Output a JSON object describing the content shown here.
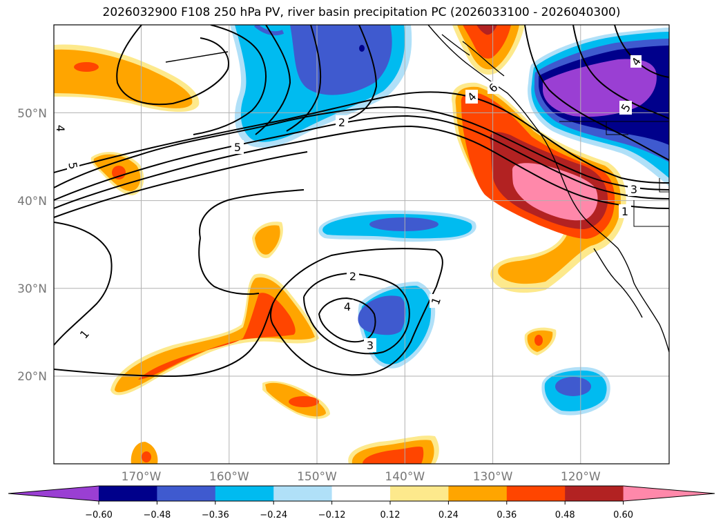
{
  "figure": {
    "title": "2026032900 F108 250 hPa PV, river basin precipitation PC (2026033100 - 2026040300)"
  },
  "axes": {
    "lat_labels": [
      "20°N",
      "30°N",
      "40°N",
      "50°N"
    ],
    "lat_values": [
      20,
      30,
      40,
      50
    ],
    "lon_labels": [
      "170°W",
      "160°W",
      "150°W",
      "140°W",
      "130°W",
      "120°W"
    ],
    "lon_values": [
      -170,
      -160,
      -150,
      -140,
      -130,
      -120
    ],
    "extent": {
      "lon_min": -180,
      "lon_max": -110,
      "lat_min": 10,
      "lat_max": 60
    }
  },
  "colorbar": {
    "tick_labels": [
      "−0.60",
      "−0.48",
      "−0.36",
      "−0.24",
      "−0.12",
      "0.12",
      "0.24",
      "0.36",
      "0.48",
      "0.60"
    ],
    "bounds": [
      -0.6,
      -0.48,
      -0.36,
      -0.24,
      -0.12,
      0.12,
      0.24,
      0.36,
      0.48,
      0.6
    ],
    "colors": [
      "#9a3fd3",
      "#00008b",
      "#3f5acf",
      "#00bbf0",
      "#b0e0f8",
      "#ffffff",
      "#fde98c",
      "#ffa500",
      "#ff4500",
      "#b22222",
      "#ff88aa"
    ],
    "extend": "both"
  },
  "chart_data": {
    "type": "map-contour",
    "title": "2026032900 F108 250 hPa PV, river basin precipitation PC (2026033100 - 2026040300)",
    "projection": "PlateCarree",
    "contour_field": "250 hPa PV",
    "contour_levels_labeled": [
      "1",
      "2",
      "3",
      "4",
      "5"
    ],
    "contour_labels": [
      {
        "text": "5",
        "lon": -157,
        "lat": 47
      },
      {
        "text": "2",
        "lon": -147,
        "lat": 49
      },
      {
        "text": "5",
        "lon": -178,
        "lat": 44
      },
      {
        "text": "4",
        "lon": -178,
        "lat": 48
      },
      {
        "text": "1",
        "lon": -173,
        "lat": 25
      },
      {
        "text": "2",
        "lon": -149,
        "lat": 31.5
      },
      {
        "text": "4",
        "lon": -146,
        "lat": 28
      },
      {
        "text": "3",
        "lon": -144,
        "lat": 24.5
      },
      {
        "text": "1",
        "lon": -136,
        "lat": 29
      },
      {
        "text": "3",
        "lon": -115.5,
        "lat": 41.5
      },
      {
        "text": "1",
        "lon": -115,
        "lat": 39
      },
      {
        "text": "4",
        "lon": -130,
        "lat": 52
      },
      {
        "text": "5",
        "lon": -115,
        "lat": 52.5
      },
      {
        "text": "4",
        "lon": -112,
        "lat": 57.5
      },
      {
        "text": "6",
        "lon": -130.5,
        "lat": 53.5
      }
    ],
    "filled_field": "river basin precipitation PC",
    "colorbar_bounds": [
      -0.6,
      -0.48,
      -0.36,
      -0.24,
      -0.12,
      0.12,
      0.24,
      0.36,
      0.48,
      0.6
    ],
    "colorbar_extend": "both"
  }
}
